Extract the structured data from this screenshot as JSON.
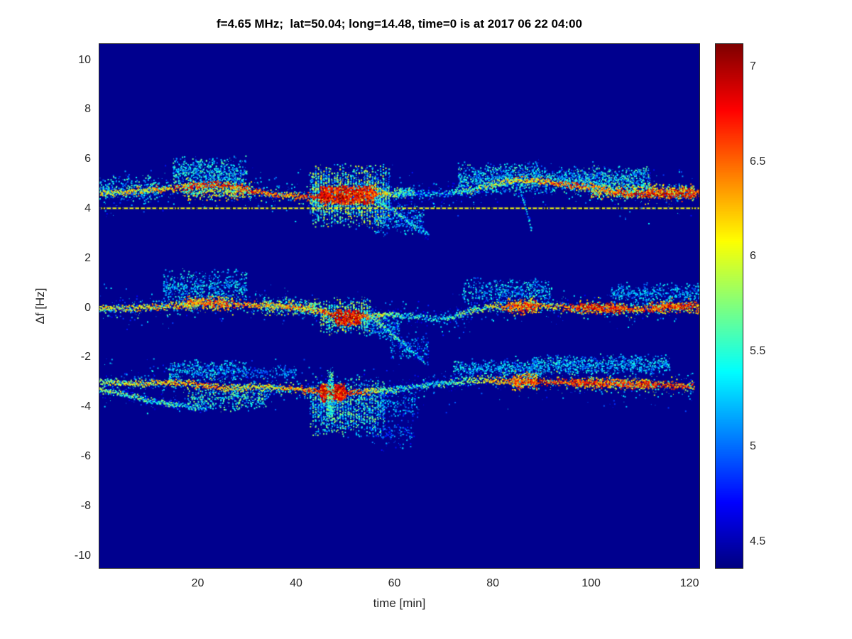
{
  "chart_data": {
    "type": "heatmap",
    "title": "f=4.65 MHz;  lat=50.04; long=14.48, time=0 is at 2017 06 22 04:00",
    "xlabel": "time [min]",
    "ylabel": "Δf [Hz]",
    "xlim": [
      0,
      122
    ],
    "ylim": [
      -10.5,
      10.65
    ],
    "x_ticks": [
      20,
      40,
      60,
      80,
      100,
      120
    ],
    "y_ticks": [
      10,
      8,
      6,
      4,
      2,
      0,
      -2,
      -4,
      -6,
      -8,
      -10
    ],
    "grid": false,
    "legend": "none",
    "colorbar": {
      "colormap": "jet",
      "min": 4.36,
      "max": 7.12,
      "ticks": [
        7,
        6.5,
        6,
        5.5,
        5,
        4.5
      ]
    },
    "background_value": 4.4,
    "interference_line": {
      "f": 4.02,
      "v": 0.62,
      "style": "dashed"
    },
    "bands": [
      {
        "name": "upper-doppler-trace-near-plus-4.5Hz",
        "spread": 0.07,
        "halo": [
          500,
          0.45
        ],
        "path": [
          [
            0,
            4.6
          ],
          [
            8,
            4.72
          ],
          [
            14,
            4.8
          ],
          [
            20,
            4.95
          ],
          [
            24,
            5.0
          ],
          [
            28,
            4.85
          ],
          [
            34,
            4.6
          ],
          [
            40,
            4.5
          ],
          [
            46,
            4.45
          ],
          [
            50,
            4.5
          ],
          [
            56,
            4.58
          ],
          [
            62,
            4.6
          ],
          [
            70,
            4.6
          ],
          [
            76,
            4.75
          ],
          [
            80,
            5.0
          ],
          [
            84,
            5.1
          ],
          [
            88,
            5.15
          ],
          [
            92,
            5.05
          ],
          [
            96,
            4.95
          ],
          [
            100,
            4.85
          ],
          [
            104,
            4.7
          ],
          [
            108,
            4.6
          ],
          [
            112,
            4.55
          ],
          [
            116,
            4.55
          ],
          [
            121,
            4.6
          ]
        ],
        "intensity": [
          [
            0,
            0.6
          ],
          [
            10,
            0.65
          ],
          [
            18,
            0.75
          ],
          [
            24,
            0.82
          ],
          [
            30,
            0.78
          ],
          [
            38,
            0.72
          ],
          [
            44,
            0.92
          ],
          [
            50,
            0.97
          ],
          [
            56,
            0.8
          ],
          [
            60,
            0.45
          ],
          [
            64,
            0.25
          ],
          [
            70,
            0.3
          ],
          [
            76,
            0.5
          ],
          [
            82,
            0.62
          ],
          [
            88,
            0.7
          ],
          [
            96,
            0.78
          ],
          [
            102,
            0.72
          ],
          [
            108,
            0.88
          ],
          [
            114,
            0.92
          ],
          [
            121,
            0.88
          ]
        ],
        "clouds": [
          [
            0,
            12,
            4.2,
            5.4,
            260,
            0.18,
            0.5,
            0
          ],
          [
            15,
            30,
            4.7,
            6.15,
            650,
            0.18,
            0.5,
            0
          ],
          [
            17,
            31,
            4.3,
            5.1,
            450,
            0.35,
            0.8,
            0
          ],
          [
            43,
            59,
            3.15,
            5.85,
            2300,
            0.18,
            0.65,
            1
          ],
          [
            45,
            56,
            4.15,
            4.95,
            850,
            0.72,
            1.0,
            1
          ],
          [
            56,
            66,
            2.85,
            4.3,
            300,
            0.15,
            0.45,
            0
          ],
          [
            60,
            64,
            4.4,
            4.9,
            120,
            0.3,
            0.6,
            0
          ],
          [
            73,
            90,
            4.5,
            5.9,
            800,
            0.18,
            0.5,
            0
          ],
          [
            90,
            112,
            4.6,
            5.75,
            900,
            0.18,
            0.5,
            0
          ],
          [
            100,
            121,
            4.35,
            5.05,
            600,
            0.35,
            0.8,
            0
          ],
          [
            111,
            122,
            4.4,
            4.85,
            350,
            0.6,
            0.95,
            0
          ]
        ]
      },
      {
        "name": "middle-doppler-trace-near-0Hz",
        "spread": 0.07,
        "halo": [
          420,
          0.4
        ],
        "path": [
          [
            0,
            -0.05
          ],
          [
            8,
            0.0
          ],
          [
            14,
            0.05
          ],
          [
            20,
            0.2
          ],
          [
            26,
            0.15
          ],
          [
            32,
            0.1
          ],
          [
            38,
            0.05
          ],
          [
            44,
            -0.1
          ],
          [
            50,
            -0.4
          ],
          [
            54,
            -0.35
          ],
          [
            60,
            -0.25
          ],
          [
            64,
            -0.35
          ],
          [
            68,
            -0.45
          ],
          [
            72,
            -0.35
          ],
          [
            76,
            -0.1
          ],
          [
            80,
            0.05
          ],
          [
            84,
            0.05
          ],
          [
            90,
            0.1
          ],
          [
            96,
            0.0
          ],
          [
            102,
            0.0
          ],
          [
            108,
            -0.05
          ],
          [
            114,
            0.0
          ],
          [
            121,
            0.1
          ]
        ],
        "intensity": [
          [
            0,
            0.58
          ],
          [
            10,
            0.62
          ],
          [
            16,
            0.68
          ],
          [
            22,
            0.8
          ],
          [
            28,
            0.72
          ],
          [
            36,
            0.68
          ],
          [
            44,
            0.72
          ],
          [
            48,
            0.9
          ],
          [
            52,
            0.95
          ],
          [
            56,
            0.65
          ],
          [
            62,
            0.38
          ],
          [
            68,
            0.35
          ],
          [
            74,
            0.45
          ],
          [
            78,
            0.52
          ],
          [
            84,
            0.8
          ],
          [
            88,
            0.85
          ],
          [
            92,
            0.62
          ],
          [
            98,
            0.85
          ],
          [
            104,
            0.88
          ],
          [
            110,
            0.75
          ],
          [
            116,
            0.85
          ],
          [
            121,
            0.88
          ]
        ],
        "clouds": [
          [
            13,
            30,
            0.1,
            1.6,
            550,
            0.18,
            0.45,
            0
          ],
          [
            17,
            27,
            -0.15,
            0.5,
            300,
            0.45,
            0.85,
            0
          ],
          [
            33,
            45,
            -0.35,
            0.45,
            280,
            0.3,
            0.65,
            0
          ],
          [
            45,
            55,
            -1.15,
            0.45,
            650,
            0.25,
            0.65,
            1
          ],
          [
            48,
            53,
            -0.75,
            -0.05,
            320,
            0.78,
            1.0,
            0
          ],
          [
            54,
            61,
            -1.3,
            -0.1,
            220,
            0.15,
            0.45,
            0
          ],
          [
            59,
            67,
            -2.3,
            -0.9,
            160,
            0.12,
            0.4,
            0
          ],
          [
            74,
            92,
            0.1,
            1.25,
            480,
            0.18,
            0.45,
            0
          ],
          [
            83,
            89,
            -0.35,
            0.45,
            260,
            0.55,
            0.9,
            0
          ],
          [
            96,
            107,
            -0.3,
            0.25,
            330,
            0.6,
            0.95,
            0
          ],
          [
            104,
            122,
            0.1,
            1.05,
            420,
            0.18,
            0.42,
            0
          ],
          [
            112,
            122,
            -0.25,
            0.3,
            240,
            0.55,
            0.9,
            0
          ]
        ]
      },
      {
        "name": "lower-doppler-trace-near-minus-3Hz",
        "spread": 0.07,
        "halo": [
          450,
          0.45
        ],
        "path": [
          [
            0,
            -3.0
          ],
          [
            8,
            -3.05
          ],
          [
            14,
            -3.0
          ],
          [
            20,
            -3.1
          ],
          [
            26,
            -3.25
          ],
          [
            32,
            -3.2
          ],
          [
            38,
            -3.25
          ],
          [
            44,
            -3.35
          ],
          [
            48,
            -3.45
          ],
          [
            54,
            -3.4
          ],
          [
            60,
            -3.3
          ],
          [
            66,
            -3.15
          ],
          [
            72,
            -3.0
          ],
          [
            78,
            -2.9
          ],
          [
            84,
            -3.0
          ],
          [
            90,
            -3.0
          ],
          [
            96,
            -3.0
          ],
          [
            102,
            -3.05
          ],
          [
            108,
            -3.1
          ],
          [
            114,
            -3.1
          ],
          [
            118,
            -3.15
          ],
          [
            121,
            -3.2
          ]
        ],
        "intensity": [
          [
            0,
            0.52
          ],
          [
            8,
            0.6
          ],
          [
            16,
            0.7
          ],
          [
            22,
            0.75
          ],
          [
            28,
            0.6
          ],
          [
            36,
            0.62
          ],
          [
            44,
            0.8
          ],
          [
            48,
            0.95
          ],
          [
            52,
            0.85
          ],
          [
            58,
            0.5
          ],
          [
            64,
            0.35
          ],
          [
            70,
            0.4
          ],
          [
            76,
            0.5
          ],
          [
            84,
            0.75
          ],
          [
            88,
            0.85
          ],
          [
            94,
            0.8
          ],
          [
            100,
            0.85
          ],
          [
            106,
            0.8
          ],
          [
            112,
            0.85
          ],
          [
            118,
            0.82
          ],
          [
            121,
            0.75
          ]
        ],
        "clouds": [
          [
            14,
            30,
            -3.0,
            -2.05,
            420,
            0.18,
            0.45,
            0
          ],
          [
            18,
            34,
            -4.25,
            -3.1,
            420,
            0.22,
            0.55,
            0
          ],
          [
            30,
            40,
            -2.9,
            -2.3,
            120,
            0.15,
            0.35,
            0
          ],
          [
            43,
            58,
            -5.3,
            -2.7,
            1300,
            0.18,
            0.55,
            1
          ],
          [
            45,
            50,
            -3.85,
            -3.05,
            340,
            0.75,
            1.0,
            0
          ],
          [
            46.4,
            47.6,
            -5.1,
            -2.2,
            240,
            0.28,
            0.55,
            0
          ],
          [
            55,
            64,
            -5.9,
            -4.1,
            140,
            0.12,
            0.32,
            0
          ],
          [
            57,
            65,
            -4.5,
            -3.3,
            130,
            0.15,
            0.38,
            0
          ],
          [
            72,
            90,
            -2.85,
            -2.05,
            450,
            0.18,
            0.45,
            0
          ],
          [
            84,
            89,
            -3.35,
            -2.55,
            260,
            0.55,
            0.88,
            0
          ],
          [
            88,
            116,
            -2.75,
            -1.85,
            850,
            0.18,
            0.45,
            0
          ],
          [
            96,
            113,
            -3.3,
            -2.8,
            380,
            0.55,
            0.9,
            0
          ]
        ]
      },
      {
        "name": "left-lower-secondary-strand",
        "spread": 0.06,
        "path": [
          [
            0,
            -3.3
          ],
          [
            5,
            -3.5
          ],
          [
            10,
            -3.75
          ],
          [
            16,
            -3.95
          ],
          [
            22,
            -4.05
          ]
        ],
        "intensity": [
          [
            0,
            0.5
          ],
          [
            8,
            0.45
          ],
          [
            16,
            0.4
          ],
          [
            22,
            0.3
          ]
        ],
        "clouds": []
      },
      {
        "name": "upper-descending-strand-t60",
        "spread": 0.06,
        "path": [
          [
            56,
            4.45
          ],
          [
            60,
            3.9
          ],
          [
            64,
            3.3
          ],
          [
            67,
            2.95
          ]
        ],
        "intensity": [
          [
            56,
            0.45
          ],
          [
            60,
            0.4
          ],
          [
            67,
            0.28
          ]
        ],
        "clouds": []
      },
      {
        "name": "middle-descending-strand-t60",
        "spread": 0.06,
        "path": [
          [
            55,
            -0.35
          ],
          [
            58,
            -0.8
          ],
          [
            62,
            -1.5
          ],
          [
            66,
            -2.15
          ]
        ],
        "intensity": [
          [
            55,
            0.45
          ],
          [
            60,
            0.4
          ],
          [
            66,
            0.28
          ]
        ],
        "clouds": []
      },
      {
        "name": "upper-descending-strand-t87",
        "spread": 0.06,
        "path": [
          [
            85.5,
            4.8
          ],
          [
            86.5,
            4.2
          ],
          [
            87.5,
            3.5
          ],
          [
            88,
            3.0
          ]
        ],
        "intensity": [
          [
            85.5,
            0.4
          ],
          [
            88,
            0.3
          ]
        ],
        "clouds": []
      }
    ]
  }
}
